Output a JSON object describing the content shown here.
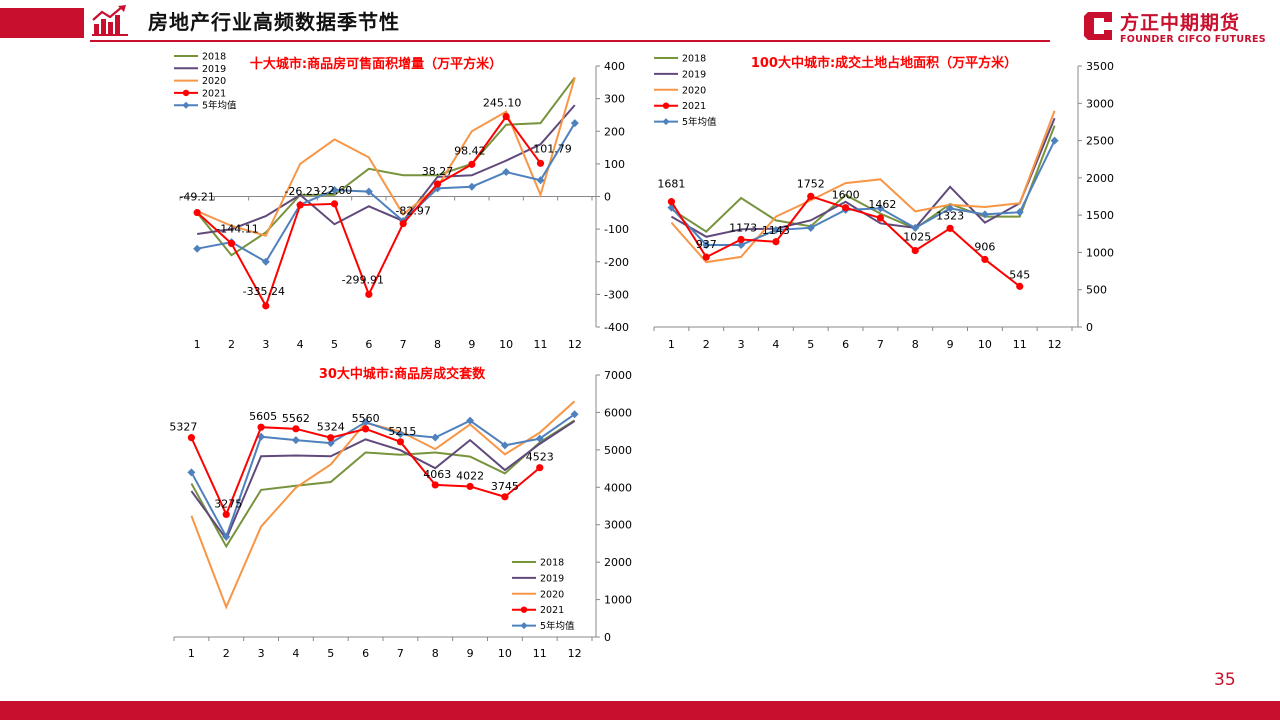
{
  "header": {
    "title": "房地产行业高频数据季节性",
    "brand_cn": "方正中期期货",
    "brand_en": "FOUNDER CIFCO FUTURES",
    "accent": "#c8102e"
  },
  "page_number": "35",
  "series_colors": {
    "2018": "#77933c",
    "2019": "#604a7b",
    "2020": "#f79646",
    "2021": "#ff0000",
    "5年均值": "#4f81bd"
  },
  "chart_data": [
    {
      "type": "line",
      "title": "十大城市:商品房可售面积增量（万平方米）",
      "categories": [
        "1",
        "2",
        "3",
        "4",
        "5",
        "6",
        "7",
        "8",
        "9",
        "10",
        "11",
        "12"
      ],
      "ylim": [
        -400,
        400
      ],
      "yticks": [
        "400",
        "300",
        "200",
        "100",
        "0",
        "-100",
        "-200",
        "-300",
        "-400"
      ],
      "legend": "top-left",
      "series": [
        {
          "name": "2018",
          "values": [
            -50,
            -180,
            -110,
            5,
            5,
            85,
            65,
            65,
            100,
            220,
            225,
            365
          ]
        },
        {
          "name": "2019",
          "values": [
            -115,
            -100,
            -60,
            5,
            -85,
            -30,
            -75,
            60,
            65,
            110,
            160,
            280
          ]
        },
        {
          "name": "2020",
          "values": [
            -45,
            -90,
            -120,
            100,
            175,
            120,
            -55,
            30,
            200,
            260,
            5,
            365
          ]
        },
        {
          "name": "2021",
          "values": [
            -49.21,
            -144.11,
            -335.24,
            -26.23,
            -22.6,
            -299.91,
            -82.97,
            38.27,
            98.42,
            245.1,
            101.79,
            null
          ]
        },
        {
          "name": "5年均值",
          "values": [
            -160,
            -140,
            -200,
            -25,
            20,
            15,
            -75,
            25,
            30,
            75,
            50,
            225
          ]
        }
      ],
      "data_labels": [
        "-49.21",
        "-144.11",
        "-335.24",
        "-26.23",
        "-22.60",
        "-299.91",
        "-82.97",
        "38.27",
        "98.42",
        "245.10",
        "101.79"
      ]
    },
    {
      "type": "line",
      "title": "100大中城市:成交土地占地面积（万平方米）",
      "categories": [
        "1",
        "2",
        "3",
        "4",
        "5",
        "6",
        "7",
        "8",
        "9",
        "10",
        "11",
        "12"
      ],
      "ylim": [
        0,
        3500
      ],
      "yticks": [
        "3500",
        "3000",
        "2500",
        "2000",
        "1500",
        "1000",
        "500",
        "0"
      ],
      "legend": "top-left",
      "series": [
        {
          "name": "2018",
          "values": [
            1580,
            1280,
            1730,
            1430,
            1350,
            1770,
            1520,
            1320,
            1650,
            1480,
            1480,
            2700
          ]
        },
        {
          "name": "2019",
          "values": [
            1480,
            1210,
            1310,
            1320,
            1430,
            1680,
            1390,
            1330,
            1880,
            1400,
            1660,
            2800
          ]
        },
        {
          "name": "2020",
          "values": [
            1400,
            870,
            940,
            1480,
            1700,
            1930,
            1980,
            1550,
            1640,
            1610,
            1660,
            2900
          ]
        },
        {
          "name": "2021",
          "values": [
            1681,
            937,
            1173,
            1143,
            1752,
            1600,
            1462,
            1025,
            1323,
            906,
            545,
            null
          ]
        },
        {
          "name": "5年均值",
          "values": [
            1600,
            1100,
            1100,
            1300,
            1330,
            1570,
            1590,
            1330,
            1590,
            1510,
            1540,
            2500
          ]
        }
      ],
      "data_labels": [
        "1681",
        "937",
        "1173",
        "1143",
        "1752",
        "1600",
        "1462",
        "1025",
        "1323",
        "906",
        "545"
      ]
    },
    {
      "type": "line",
      "title": "30大中城市:商品房成交套数",
      "categories": [
        "1",
        "2",
        "3",
        "4",
        "5",
        "6",
        "7",
        "8",
        "9",
        "10",
        "11",
        "12"
      ],
      "ylim": [
        0,
        7000
      ],
      "yticks": [
        "7000",
        "6000",
        "5000",
        "4000",
        "3000",
        "2000",
        "1000",
        "0"
      ],
      "legend": "bottom-right",
      "series": [
        {
          "name": "2018",
          "values": [
            4100,
            2420,
            3930,
            4040,
            4140,
            4930,
            4870,
            4930,
            4820,
            4370,
            5200,
            5790
          ]
        },
        {
          "name": "2019",
          "values": [
            3900,
            2620,
            4830,
            4850,
            4830,
            5280,
            4990,
            4510,
            5260,
            4460,
            5160,
            5770
          ]
        },
        {
          "name": "2020",
          "values": [
            3240,
            800,
            2950,
            3990,
            4610,
            5720,
            5490,
            5020,
            5680,
            4880,
            5460,
            6300
          ]
        },
        {
          "name": "2021",
          "values": [
            5327,
            3275,
            5605,
            5562,
            5324,
            5560,
            5215,
            4063,
            4022,
            3745,
            4523,
            null
          ]
        },
        {
          "name": "5年均值",
          "values": [
            4400,
            2680,
            5350,
            5260,
            5180,
            5740,
            5420,
            5330,
            5780,
            5120,
            5300,
            5950
          ]
        }
      ],
      "data_labels": [
        "5327",
        "3275",
        "5605",
        "5562",
        "5324",
        "5560",
        "5215",
        "4063",
        "4022",
        "3745",
        "4523"
      ]
    }
  ]
}
